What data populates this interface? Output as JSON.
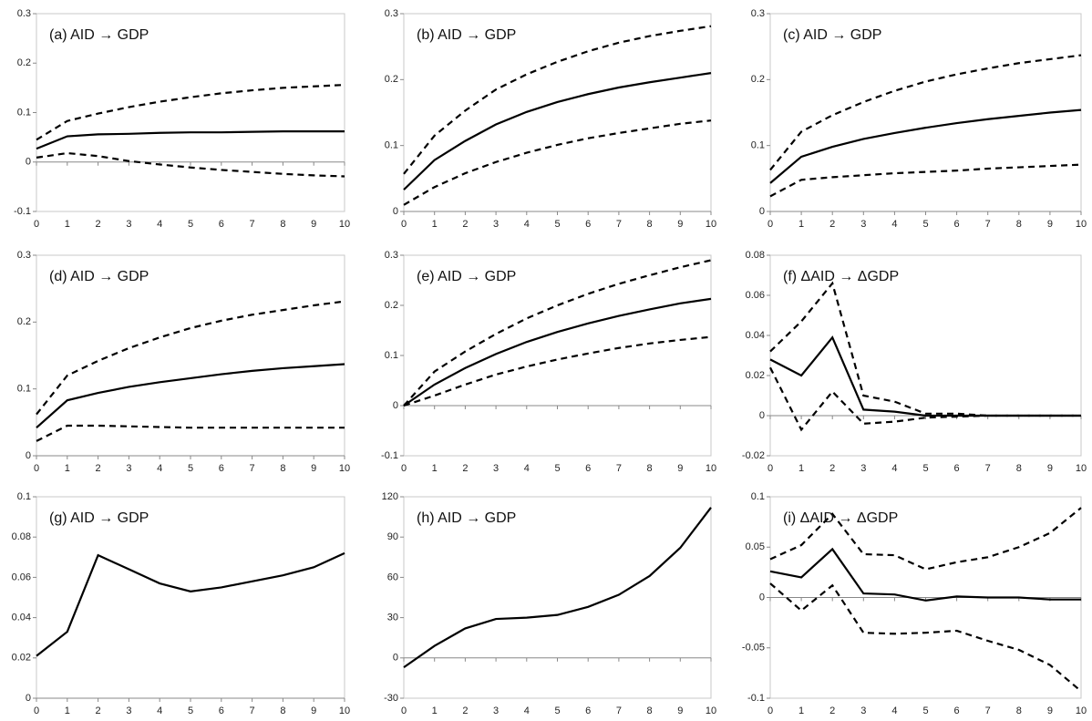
{
  "chart_data": [
    {
      "type": "line",
      "title": "(a) AID → GDP",
      "x": [
        0,
        1,
        2,
        3,
        4,
        5,
        6,
        7,
        8,
        9,
        10
      ],
      "xlim": [
        0,
        10
      ],
      "xticks": [
        0,
        1,
        2,
        3,
        4,
        5,
        6,
        7,
        8,
        9,
        10
      ],
      "ylim": [
        -0.1,
        0.3
      ],
      "yticks": [
        -0.1,
        0,
        0.1,
        0.2,
        0.3
      ],
      "series": [
        {
          "color": "#000000",
          "style": "solid",
          "values": [
            0.027,
            0.052,
            0.056,
            0.057,
            0.059,
            0.06,
            0.06,
            0.061,
            0.062,
            0.062,
            0.062
          ]
        },
        {
          "color": "#000000",
          "style": "dashed",
          "values": [
            0.045,
            0.083,
            0.098,
            0.111,
            0.122,
            0.131,
            0.139,
            0.145,
            0.15,
            0.153,
            0.156
          ]
        },
        {
          "color": "#000000",
          "style": "dashed",
          "values": [
            0.009,
            0.018,
            0.012,
            0.002,
            -0.005,
            -0.011,
            -0.016,
            -0.02,
            -0.024,
            -0.027,
            -0.029
          ]
        }
      ]
    },
    {
      "type": "line",
      "title": "(b) AID → GDP",
      "x": [
        0,
        1,
        2,
        3,
        4,
        5,
        6,
        7,
        8,
        9,
        10
      ],
      "xlim": [
        0,
        10
      ],
      "xticks": [
        0,
        1,
        2,
        3,
        4,
        5,
        6,
        7,
        8,
        9,
        10
      ],
      "ylim": [
        0,
        0.3
      ],
      "yticks": [
        0,
        0.1,
        0.2,
        0.3
      ],
      "series": [
        {
          "color": "#000000",
          "style": "solid",
          "values": [
            0.033,
            0.078,
            0.107,
            0.132,
            0.151,
            0.166,
            0.178,
            0.188,
            0.196,
            0.203,
            0.21
          ]
        },
        {
          "color": "#000000",
          "style": "dashed",
          "values": [
            0.057,
            0.115,
            0.153,
            0.185,
            0.208,
            0.227,
            0.243,
            0.256,
            0.266,
            0.274,
            0.281
          ]
        },
        {
          "color": "#000000",
          "style": "dashed",
          "values": [
            0.01,
            0.037,
            0.058,
            0.075,
            0.089,
            0.101,
            0.111,
            0.119,
            0.126,
            0.133,
            0.138
          ]
        }
      ]
    },
    {
      "type": "line",
      "title": "(c) AID → GDP",
      "x": [
        0,
        1,
        2,
        3,
        4,
        5,
        6,
        7,
        8,
        9,
        10
      ],
      "xlim": [
        0,
        10
      ],
      "xticks": [
        0,
        1,
        2,
        3,
        4,
        5,
        6,
        7,
        8,
        9,
        10
      ],
      "ylim": [
        0,
        0.3
      ],
      "yticks": [
        0,
        0.1,
        0.2,
        0.3
      ],
      "series": [
        {
          "color": "#000000",
          "style": "solid",
          "values": [
            0.043,
            0.083,
            0.098,
            0.11,
            0.119,
            0.127,
            0.134,
            0.14,
            0.145,
            0.15,
            0.154
          ]
        },
        {
          "color": "#000000",
          "style": "dashed",
          "values": [
            0.063,
            0.121,
            0.146,
            0.166,
            0.183,
            0.197,
            0.208,
            0.217,
            0.225,
            0.231,
            0.237
          ]
        },
        {
          "color": "#000000",
          "style": "dashed",
          "values": [
            0.023,
            0.048,
            0.052,
            0.055,
            0.058,
            0.06,
            0.062,
            0.065,
            0.067,
            0.069,
            0.071
          ]
        }
      ]
    },
    {
      "type": "line",
      "title": "(d) AID → GDP",
      "x": [
        0,
        1,
        2,
        3,
        4,
        5,
        6,
        7,
        8,
        9,
        10
      ],
      "xlim": [
        0,
        10
      ],
      "xticks": [
        0,
        1,
        2,
        3,
        4,
        5,
        6,
        7,
        8,
        9,
        10
      ],
      "ylim": [
        0,
        0.3
      ],
      "yticks": [
        0,
        0.1,
        0.2,
        0.3
      ],
      "series": [
        {
          "color": "#000000",
          "style": "solid",
          "values": [
            0.042,
            0.083,
            0.094,
            0.103,
            0.11,
            0.116,
            0.122,
            0.127,
            0.131,
            0.134,
            0.137
          ]
        },
        {
          "color": "#000000",
          "style": "dashed",
          "values": [
            0.062,
            0.12,
            0.142,
            0.161,
            0.177,
            0.191,
            0.202,
            0.211,
            0.218,
            0.225,
            0.231
          ]
        },
        {
          "color": "#000000",
          "style": "dashed",
          "values": [
            0.022,
            0.045,
            0.045,
            0.044,
            0.043,
            0.042,
            0.042,
            0.042,
            0.042,
            0.042,
            0.042
          ]
        }
      ]
    },
    {
      "type": "line",
      "title": "(e) AID → GDP",
      "x": [
        0,
        1,
        2,
        3,
        4,
        5,
        6,
        7,
        8,
        9,
        10
      ],
      "xlim": [
        0,
        10
      ],
      "xticks": [
        0,
        1,
        2,
        3,
        4,
        5,
        6,
        7,
        8,
        9,
        10
      ],
      "ylim": [
        -0.1,
        0.3
      ],
      "yticks": [
        -0.1,
        0,
        0.1,
        0.2,
        0.3
      ],
      "series": [
        {
          "color": "#000000",
          "style": "solid",
          "values": [
            0,
            0.042,
            0.075,
            0.103,
            0.127,
            0.147,
            0.164,
            0.179,
            0.192,
            0.204,
            0.213
          ]
        },
        {
          "color": "#000000",
          "style": "dashed",
          "values": [
            0,
            0.068,
            0.108,
            0.143,
            0.174,
            0.2,
            0.223,
            0.243,
            0.26,
            0.276,
            0.29
          ]
        },
        {
          "color": "#000000",
          "style": "dashed",
          "values": [
            0,
            0.02,
            0.042,
            0.062,
            0.078,
            0.092,
            0.104,
            0.115,
            0.124,
            0.131,
            0.137
          ]
        }
      ]
    },
    {
      "type": "line",
      "title": "(f) ΔAID → ΔGDP",
      "x": [
        0,
        1,
        2,
        3,
        4,
        5,
        6,
        7,
        8,
        9,
        10
      ],
      "xlim": [
        0,
        10
      ],
      "xticks": [
        0,
        1,
        2,
        3,
        4,
        5,
        6,
        7,
        8,
        9,
        10
      ],
      "ylim": [
        -0.02,
        0.08
      ],
      "yticks": [
        -0.02,
        0,
        0.02,
        0.04,
        0.06,
        0.08
      ],
      "series": [
        {
          "color": "#000000",
          "style": "solid",
          "values": [
            0.028,
            0.02,
            0.039,
            0.003,
            0.002,
            0,
            0,
            0,
            0,
            0,
            0
          ]
        },
        {
          "color": "#000000",
          "style": "dashed",
          "values": [
            0.032,
            0.047,
            0.066,
            0.01,
            0.007,
            0.001,
            0.001,
            0,
            0,
            0,
            0
          ]
        },
        {
          "color": "#000000",
          "style": "dashed",
          "values": [
            0.024,
            -0.007,
            0.012,
            -0.004,
            -0.003,
            -0.001,
            -0.0005,
            0,
            0,
            0,
            0
          ]
        }
      ]
    },
    {
      "type": "line",
      "title": "(g) AID → GDP",
      "x": [
        0,
        1,
        2,
        3,
        4,
        5,
        6,
        7,
        8,
        9,
        10
      ],
      "xlim": [
        0,
        10
      ],
      "xticks": [
        0,
        1,
        2,
        3,
        4,
        5,
        6,
        7,
        8,
        9,
        10
      ],
      "ylim": [
        0,
        0.1
      ],
      "yticks": [
        0,
        0.02,
        0.04,
        0.06,
        0.08,
        0.1
      ],
      "series": [
        {
          "color": "#000000",
          "style": "solid",
          "values": [
            0.021,
            0.033,
            0.071,
            0.064,
            0.057,
            0.053,
            0.055,
            0.058,
            0.061,
            0.065,
            0.072
          ]
        }
      ]
    },
    {
      "type": "line",
      "title": "(h) AID → GDP",
      "x": [
        0,
        1,
        2,
        3,
        4,
        5,
        6,
        7,
        8,
        9,
        10
      ],
      "xlim": [
        0,
        10
      ],
      "xticks": [
        0,
        1,
        2,
        3,
        4,
        5,
        6,
        7,
        8,
        9,
        10
      ],
      "ylim": [
        -30,
        120
      ],
      "yticks": [
        -30,
        0,
        30,
        60,
        90,
        120
      ],
      "series": [
        {
          "color": "#000000",
          "style": "solid",
          "values": [
            -7,
            9,
            22,
            29,
            30,
            32,
            38,
            47,
            61,
            82,
            112
          ]
        }
      ]
    },
    {
      "type": "line",
      "title": "(i) ΔAID → ΔGDP",
      "x": [
        0,
        1,
        2,
        3,
        4,
        5,
        6,
        7,
        8,
        9,
        10
      ],
      "xlim": [
        0,
        10
      ],
      "xticks": [
        0,
        1,
        2,
        3,
        4,
        5,
        6,
        7,
        8,
        9,
        10
      ],
      "ylim": [
        -0.1,
        0.1
      ],
      "yticks": [
        -0.1,
        -0.05,
        0,
        0.05,
        0.1
      ],
      "series": [
        {
          "color": "#000000",
          "style": "solid",
          "values": [
            0.026,
            0.02,
            0.048,
            0.004,
            0.003,
            -0.003,
            0.001,
            0,
            0,
            -0.002,
            -0.002
          ]
        },
        {
          "color": "#000000",
          "style": "dashed",
          "values": [
            0.038,
            0.052,
            0.083,
            0.043,
            0.042,
            0.028,
            0.035,
            0.04,
            0.05,
            0.064,
            0.089
          ]
        },
        {
          "color": "#000000",
          "style": "dashed",
          "values": [
            0.014,
            -0.013,
            0.012,
            -0.035,
            -0.036,
            -0.035,
            -0.033,
            -0.043,
            -0.052,
            -0.067,
            -0.093
          ]
        }
      ]
    }
  ]
}
